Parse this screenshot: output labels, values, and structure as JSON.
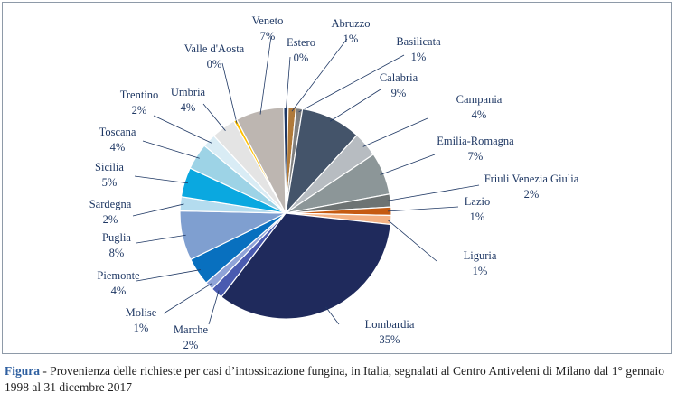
{
  "chart_data": {
    "type": "pie",
    "title": "",
    "slices": [
      {
        "label": "Estero",
        "value": 0,
        "pct": "0%",
        "color": "#1f3864"
      },
      {
        "label": "Abruzzo",
        "value": 1,
        "pct": "1%",
        "color": "#b07a3a"
      },
      {
        "label": "Basilicata",
        "value": 1,
        "pct": "1%",
        "color": "#7f7f7f"
      },
      {
        "label": "Calabria",
        "value": 9,
        "pct": "9%",
        "color": "#44546a"
      },
      {
        "label": "Campania",
        "value": 4,
        "pct": "4%",
        "color": "#b7bcc1"
      },
      {
        "label": "Emilia-Romagna",
        "value": 7,
        "pct": "7%",
        "color": "#8c9698"
      },
      {
        "label": "Friuli Venezia Giulia",
        "value": 2,
        "pct": "2%",
        "color": "#6d7373"
      },
      {
        "label": "Lazio",
        "value": 1,
        "pct": "1%",
        "color": "#c55a11"
      },
      {
        "label": "Liguria",
        "value": 1,
        "pct": "1%",
        "color": "#f4b183"
      },
      {
        "label": "Lombardia",
        "value": 35,
        "pct": "35%",
        "color": "#1f2a5c"
      },
      {
        "label": "Marche",
        "value": 2,
        "pct": "2%",
        "color": "#4a5bb0"
      },
      {
        "label": "Molise",
        "value": 1,
        "pct": "1%",
        "color": "#8fa3d8"
      },
      {
        "label": "Piemonte",
        "value": 4,
        "pct": "4%",
        "color": "#0870bf"
      },
      {
        "label": "Puglia",
        "value": 8,
        "pct": "8%",
        "color": "#7f9fd0"
      },
      {
        "label": "Sardegna",
        "value": 2,
        "pct": "2%",
        "color": "#b4dcef"
      },
      {
        "label": "Sicilia",
        "value": 5,
        "pct": "5%",
        "color": "#0aa8e0"
      },
      {
        "label": "Toscana",
        "value": 4,
        "pct": "4%",
        "color": "#9dd3e6"
      },
      {
        "label": "Trentino",
        "value": 2,
        "pct": "2%",
        "color": "#d9ecf5"
      },
      {
        "label": "Umbria",
        "value": 4,
        "pct": "4%",
        "color": "#e4e4e4"
      },
      {
        "label": "Valle d'Aosta",
        "value": 0,
        "pct": "0%",
        "color": "#ffc000"
      },
      {
        "label": "Veneto",
        "value": 7,
        "pct": "7%",
        "color": "#bdb6b1"
      }
    ]
  },
  "caption": {
    "prefix": "Figura",
    "text": " - Provenienza delle richieste per casi d’intossicazione fungina, in Italia, segnalati al Centro Antiveleni di Milano dal 1° gennaio 1998 al 31 dicembre 2017"
  }
}
